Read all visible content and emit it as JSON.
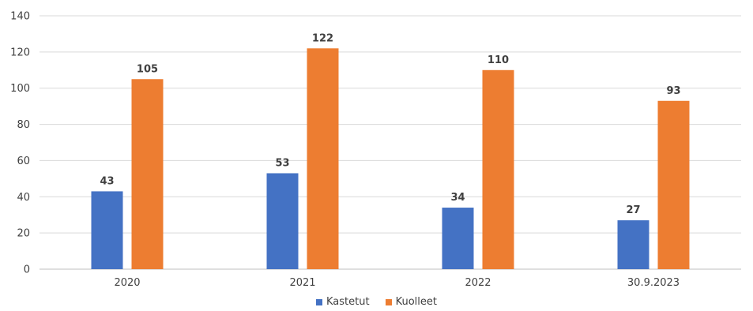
{
  "chart_data": {
    "type": "bar",
    "categories": [
      "2020",
      "2021",
      "2022",
      "30.9.2023"
    ],
    "series": [
      {
        "name": "Kastetut",
        "values": [
          43,
          53,
          34,
          27
        ],
        "color": "#4472c4"
      },
      {
        "name": "Kuolleet",
        "values": [
          105,
          122,
          110,
          93
        ],
        "color": "#ed7d31"
      }
    ],
    "ylim": [
      0,
      140
    ],
    "yticks": [
      0,
      20,
      40,
      60,
      80,
      100,
      120,
      140
    ],
    "grid": true,
    "legend_position": "bottom"
  }
}
